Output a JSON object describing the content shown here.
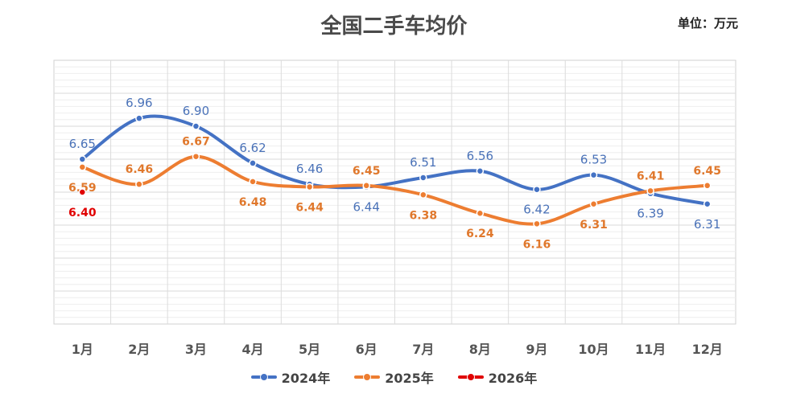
{
  "chart_data": {
    "type": "line",
    "title": "全国二手车均价",
    "unit_label": "单位：万元",
    "categories": [
      "1月",
      "2月",
      "3月",
      "4月",
      "5月",
      "6月",
      "7月",
      "8月",
      "9月",
      "10月",
      "11月",
      "12月"
    ],
    "ylim": [
      5.4,
      7.4
    ],
    "grid": true,
    "legend_position": "bottom",
    "series": [
      {
        "name": "2024年",
        "color": "#4472c4",
        "values": [
          6.65,
          6.96,
          6.9,
          6.62,
          6.46,
          6.44,
          6.51,
          6.56,
          6.42,
          6.53,
          6.39,
          6.31
        ],
        "label_style": "normal"
      },
      {
        "name": "2025年",
        "color": "#ed7d31",
        "values": [
          6.59,
          6.46,
          6.67,
          6.48,
          6.44,
          6.45,
          6.38,
          6.24,
          6.16,
          6.31,
          6.41,
          6.45
        ],
        "label_style": "bold"
      },
      {
        "name": "2026年",
        "color": "#e00000",
        "values": [
          6.4,
          null,
          null,
          null,
          null,
          null,
          null,
          null,
          null,
          null,
          null,
          null
        ],
        "label_style": "bold"
      }
    ]
  }
}
